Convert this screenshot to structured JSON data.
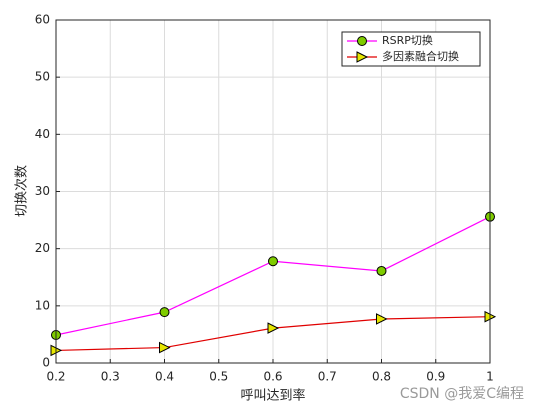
{
  "chart_data": {
    "type": "line",
    "x": [
      0.2,
      0.4,
      0.6,
      0.8,
      1
    ],
    "series": [
      {
        "name": "RSRP切换",
        "color": "#ff00ff",
        "marker": "circle",
        "marker_color": "#7fcc00",
        "values": [
          4.9,
          8.9,
          17.8,
          16.1,
          25.6
        ]
      },
      {
        "name": "多因素融合切换",
        "color": "#e00000",
        "marker": "triangle-right",
        "marker_color": "#e6e600",
        "values": [
          2.2,
          2.7,
          6.1,
          7.7,
          8.1
        ]
      }
    ],
    "xlabel": "呼叫达到率",
    "ylabel": "切换次数",
    "xlim": [
      0.2,
      1
    ],
    "xticks": [
      0.2,
      0.3,
      0.4,
      0.5,
      0.6,
      0.7,
      0.8,
      0.9,
      1
    ],
    "ylim": [
      0,
      60
    ],
    "yticks": [
      0,
      10,
      20,
      30,
      40,
      50,
      60
    ],
    "grid": true,
    "legend": "upper-right",
    "watermark": "CSDN @我爱C编程"
  }
}
